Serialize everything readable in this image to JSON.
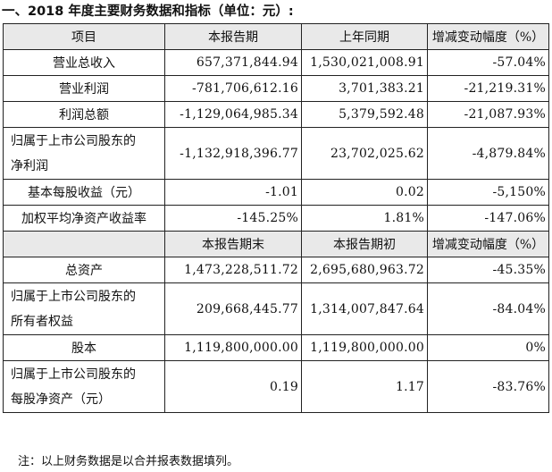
{
  "heading": "一、2018 年度主要财务数据和指标（单位：元）:",
  "header1": {
    "item": "项目",
    "current": "本报告期",
    "prior": "上年同期",
    "change": "增减变动幅度（%）"
  },
  "income_rows": [
    {
      "label": "营业总收入",
      "current": "657,371,844.94",
      "prior": "1,530,021,008.91",
      "change": "-57.04%"
    },
    {
      "label": "营业利润",
      "current": "-781,706,612.16",
      "prior": "3,701,383.21",
      "change": "-21,219.31%"
    },
    {
      "label": "利润总额",
      "current": "-1,129,064,985.34",
      "prior": "5,379,592.48",
      "change": "-21,087.93%"
    },
    {
      "label_line1": "归属于上市公司股东的",
      "label_line2": "净利润",
      "current": "-1,132,918,396.77",
      "prior": "23,702,025.62",
      "change": "-4,879.84%"
    },
    {
      "label": "基本每股收益（元）",
      "current": "-1.01",
      "prior": "0.02",
      "change": "-5,150%"
    },
    {
      "label": "加权平均净资产收益率",
      "current": "-145.25%",
      "prior": "1.81%",
      "change": "-147.06%"
    }
  ],
  "header2": {
    "current": "本报告期末",
    "prior": "本报告期初",
    "change": "增减变动幅度（%）"
  },
  "balance_rows": [
    {
      "label": "总资产",
      "current": "1,473,228,511.72",
      "prior": "2,695,680,963.72",
      "change": "-45.35%"
    },
    {
      "label_line1": "归属于上市公司股东的",
      "label_line2": "所有者权益",
      "current": "209,668,445.77",
      "prior": "1,314,007,847.64",
      "change": "-84.04%"
    },
    {
      "label": "股本",
      "current": "1,119,800,000.00",
      "prior": "1,119,800,000.00",
      "change": "0%"
    },
    {
      "label_line1": "归属于上市公司股东的",
      "label_line2": "每股净资产（元）",
      "current": "0.19",
      "prior": "1.17",
      "change": "-83.76%"
    }
  ],
  "note": "注：以上财务数据是以合并报表数据填列。"
}
